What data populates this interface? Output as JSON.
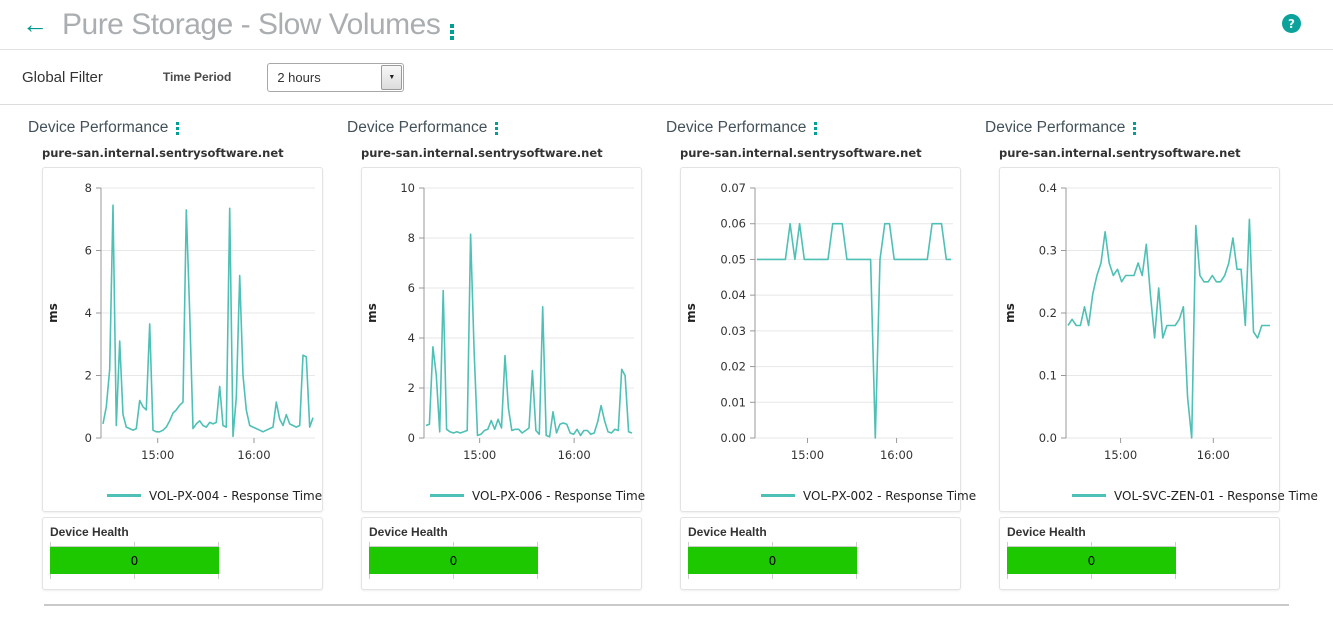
{
  "header": {
    "title": "Pure Storage - Slow Volumes",
    "back_icon": "←",
    "help_icon": "?"
  },
  "filter": {
    "label": "Global Filter",
    "field_label": "Time Period",
    "selected_value": "2 hours",
    "arrow_icon": "▼"
  },
  "colors": {
    "accent_teal": "#00a095",
    "line_teal": "#4fc0b5",
    "health_green": "#1ec800",
    "title_gray": "#abaeb1"
  },
  "panels": [
    {
      "title": "Device Performance",
      "host": "pure-san.internal.sentrysoftware.net",
      "health": {
        "label": "Device Health",
        "value": "0"
      }
    },
    {
      "title": "Device Performance",
      "host": "pure-san.internal.sentrysoftware.net",
      "health": {
        "label": "Device Health",
        "value": "0"
      }
    },
    {
      "title": "Device Performance",
      "host": "pure-san.internal.sentrysoftware.net",
      "health": {
        "label": "Device Health",
        "value": "0"
      }
    },
    {
      "title": "Device Performance",
      "host": "pure-san.internal.sentrysoftware.net",
      "health": {
        "label": "Device Health",
        "value": "0"
      }
    }
  ],
  "chart_data": [
    {
      "type": "line",
      "title": "pure-san.internal.sentrysoftware.net",
      "ylabel": "ms",
      "ylim": [
        0,
        8
      ],
      "ytick_labels": [
        "0",
        "2",
        "4",
        "6",
        "8"
      ],
      "xticks": [
        {
          "label": "15:00",
          "pos": 0.265
        },
        {
          "label": "16:00",
          "pos": 0.715
        }
      ],
      "grid": true,
      "legend_position": "bottom",
      "plot_left": 58,
      "series": [
        {
          "name": "VOL-PX-004 - Response Time",
          "values": [
            0.45,
            1.0,
            2.2,
            7.45,
            0.4,
            3.1,
            0.75,
            0.35,
            0.3,
            0.25,
            0.3,
            1.2,
            1.0,
            0.9,
            3.65,
            0.25,
            0.2,
            0.2,
            0.25,
            0.35,
            0.55,
            0.8,
            0.9,
            1.05,
            1.15,
            7.3,
            4.0,
            0.3,
            0.45,
            0.55,
            0.4,
            0.35,
            0.5,
            0.45,
            0.5,
            1.65,
            0.4,
            0.35,
            7.35,
            0.05,
            1.3,
            5.2,
            2.0,
            0.9,
            0.4,
            0.35,
            0.3,
            0.25,
            0.2,
            0.25,
            0.3,
            0.35,
            1.15,
            0.6,
            0.4,
            0.75,
            0.45,
            0.4,
            0.35,
            0.4,
            2.65,
            2.6,
            0.35,
            0.65
          ]
        }
      ]
    },
    {
      "type": "line",
      "title": "pure-san.internal.sentrysoftware.net",
      "ylabel": "ms",
      "ylim": [
        0,
        10
      ],
      "ytick_labels": [
        "0",
        "2",
        "4",
        "6",
        "8",
        "10"
      ],
      "xticks": [
        {
          "label": "15:00",
          "pos": 0.265
        },
        {
          "label": "16:00",
          "pos": 0.715
        }
      ],
      "grid": true,
      "legend_position": "bottom",
      "plot_left": 62,
      "series": [
        {
          "name": "VOL-PX-006 - Response Time",
          "values": [
            0.5,
            0.55,
            3.65,
            2.5,
            0.25,
            5.9,
            0.35,
            0.25,
            0.2,
            0.25,
            0.2,
            0.25,
            0.3,
            8.15,
            3.5,
            0.1,
            0.15,
            0.3,
            0.35,
            0.7,
            0.35,
            0.75,
            0.4,
            3.3,
            1.2,
            0.3,
            0.35,
            0.35,
            0.2,
            0.3,
            0.4,
            2.7,
            0.3,
            0.15,
            5.25,
            0.1,
            0.05,
            1.05,
            0.2,
            0.55,
            0.6,
            0.55,
            0.2,
            0.15,
            0.35,
            0.1,
            0.3,
            0.3,
            0.15,
            0.2,
            0.65,
            1.3,
            0.7,
            0.25,
            0.2,
            0.35,
            0.3,
            2.75,
            2.5,
            0.25,
            0.2
          ]
        }
      ]
    },
    {
      "type": "line",
      "title": "pure-san.internal.sentrysoftware.net",
      "ylabel": "ms",
      "ylim": [
        0,
        0.07
      ],
      "ytick_labels": [
        "0.00",
        "0.01",
        "0.02",
        "0.03",
        "0.04",
        "0.05",
        "0.06",
        "0.07"
      ],
      "xticks": [
        {
          "label": "15:00",
          "pos": 0.265
        },
        {
          "label": "16:00",
          "pos": 0.715
        }
      ],
      "grid": true,
      "legend_position": "bottom",
      "plot_left": 74,
      "series": [
        {
          "name": "VOL-PX-002 - Response Time",
          "values": [
            0.05,
            0.05,
            0.05,
            0.05,
            0.05,
            0.05,
            0.05,
            0.06,
            0.05,
            0.06,
            0.05,
            0.05,
            0.05,
            0.05,
            0.05,
            0.05,
            0.06,
            0.06,
            0.06,
            0.05,
            0.05,
            0.05,
            0.05,
            0.05,
            0.05,
            0.0,
            0.05,
            0.06,
            0.06,
            0.05,
            0.05,
            0.05,
            0.05,
            0.05,
            0.05,
            0.05,
            0.05,
            0.06,
            0.06,
            0.06,
            0.05,
            0.05
          ]
        }
      ]
    },
    {
      "type": "line",
      "title": "pure-san.internal.sentrysoftware.net",
      "ylabel": "ms",
      "ylim": [
        0,
        0.4
      ],
      "ytick_labels": [
        "0.0",
        "0.1",
        "0.2",
        "0.3",
        "0.4"
      ],
      "xticks": [
        {
          "label": "15:00",
          "pos": 0.265
        },
        {
          "label": "16:00",
          "pos": 0.715
        }
      ],
      "grid": true,
      "legend_position": "bottom",
      "plot_left": 66,
      "series": [
        {
          "name": "VOL-SVC-ZEN-01 - Response Time",
          "values": [
            0.18,
            0.19,
            0.18,
            0.18,
            0.21,
            0.18,
            0.23,
            0.26,
            0.28,
            0.33,
            0.28,
            0.26,
            0.27,
            0.25,
            0.26,
            0.26,
            0.26,
            0.28,
            0.26,
            0.31,
            0.23,
            0.16,
            0.24,
            0.16,
            0.18,
            0.18,
            0.18,
            0.19,
            0.21,
            0.065,
            0.0,
            0.34,
            0.26,
            0.25,
            0.25,
            0.26,
            0.25,
            0.25,
            0.26,
            0.28,
            0.32,
            0.27,
            0.27,
            0.18,
            0.35,
            0.17,
            0.16,
            0.18,
            0.18,
            0.18
          ]
        }
      ]
    }
  ]
}
